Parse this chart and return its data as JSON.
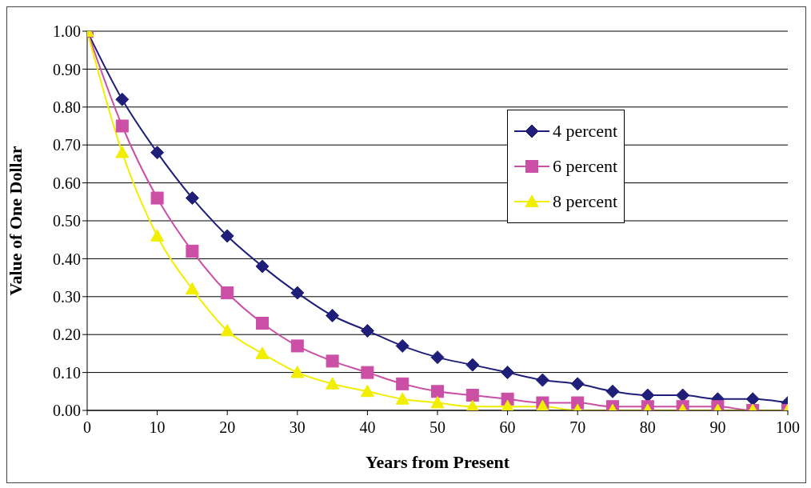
{
  "chart_data": {
    "type": "line",
    "xlabel": "Years from Present",
    "ylabel": "Value of One Dollar",
    "x": [
      0,
      5,
      10,
      15,
      20,
      25,
      30,
      35,
      40,
      45,
      50,
      55,
      60,
      65,
      70,
      75,
      80,
      85,
      90,
      95,
      100
    ],
    "series": [
      {
        "name": "4 percent",
        "color": "#1f1f7a",
        "marker": "diamond",
        "values": [
          1.0,
          0.82,
          0.68,
          0.56,
          0.46,
          0.38,
          0.31,
          0.25,
          0.21,
          0.17,
          0.14,
          0.12,
          0.1,
          0.08,
          0.07,
          0.05,
          0.04,
          0.04,
          0.03,
          0.03,
          0.02
        ]
      },
      {
        "name": "6 percent",
        "color": "#cc4fa6",
        "marker": "square",
        "values": [
          1.0,
          0.75,
          0.56,
          0.42,
          0.31,
          0.23,
          0.17,
          0.13,
          0.1,
          0.07,
          0.05,
          0.04,
          0.03,
          0.02,
          0.02,
          0.01,
          0.01,
          0.01,
          0.01,
          0.0,
          0.0
        ]
      },
      {
        "name": "8 percent",
        "color": "#f2ee00",
        "marker": "triangle",
        "values": [
          1.0,
          0.68,
          0.46,
          0.32,
          0.21,
          0.15,
          0.1,
          0.07,
          0.05,
          0.03,
          0.02,
          0.01,
          0.01,
          0.01,
          0.0,
          0.0,
          0.0,
          0.0,
          0.0,
          0.0,
          0.0
        ]
      }
    ],
    "xlim": [
      0,
      100
    ],
    "xticks": [
      0,
      10,
      20,
      30,
      40,
      50,
      60,
      70,
      80,
      90,
      100
    ],
    "ylim": [
      0,
      1
    ],
    "yticks": [
      {
        "value": 0,
        "label": "0.00"
      },
      {
        "value": 0.1,
        "label": "0.10"
      },
      {
        "value": 0.2,
        "label": "0.20"
      },
      {
        "value": 0.3,
        "label": "0.30"
      },
      {
        "value": 0.4,
        "label": "0.40"
      },
      {
        "value": 0.5,
        "label": "0.50"
      },
      {
        "value": 0.6,
        "label": "0.60"
      },
      {
        "value": 0.7,
        "label": "0.70"
      },
      {
        "value": 0.8,
        "label": "0.80"
      },
      {
        "value": 0.9,
        "label": "0.90"
      },
      {
        "value": 1,
        "label": "1.00"
      }
    ],
    "grid": "y",
    "legend": "top right",
    "line_style": "solid"
  }
}
